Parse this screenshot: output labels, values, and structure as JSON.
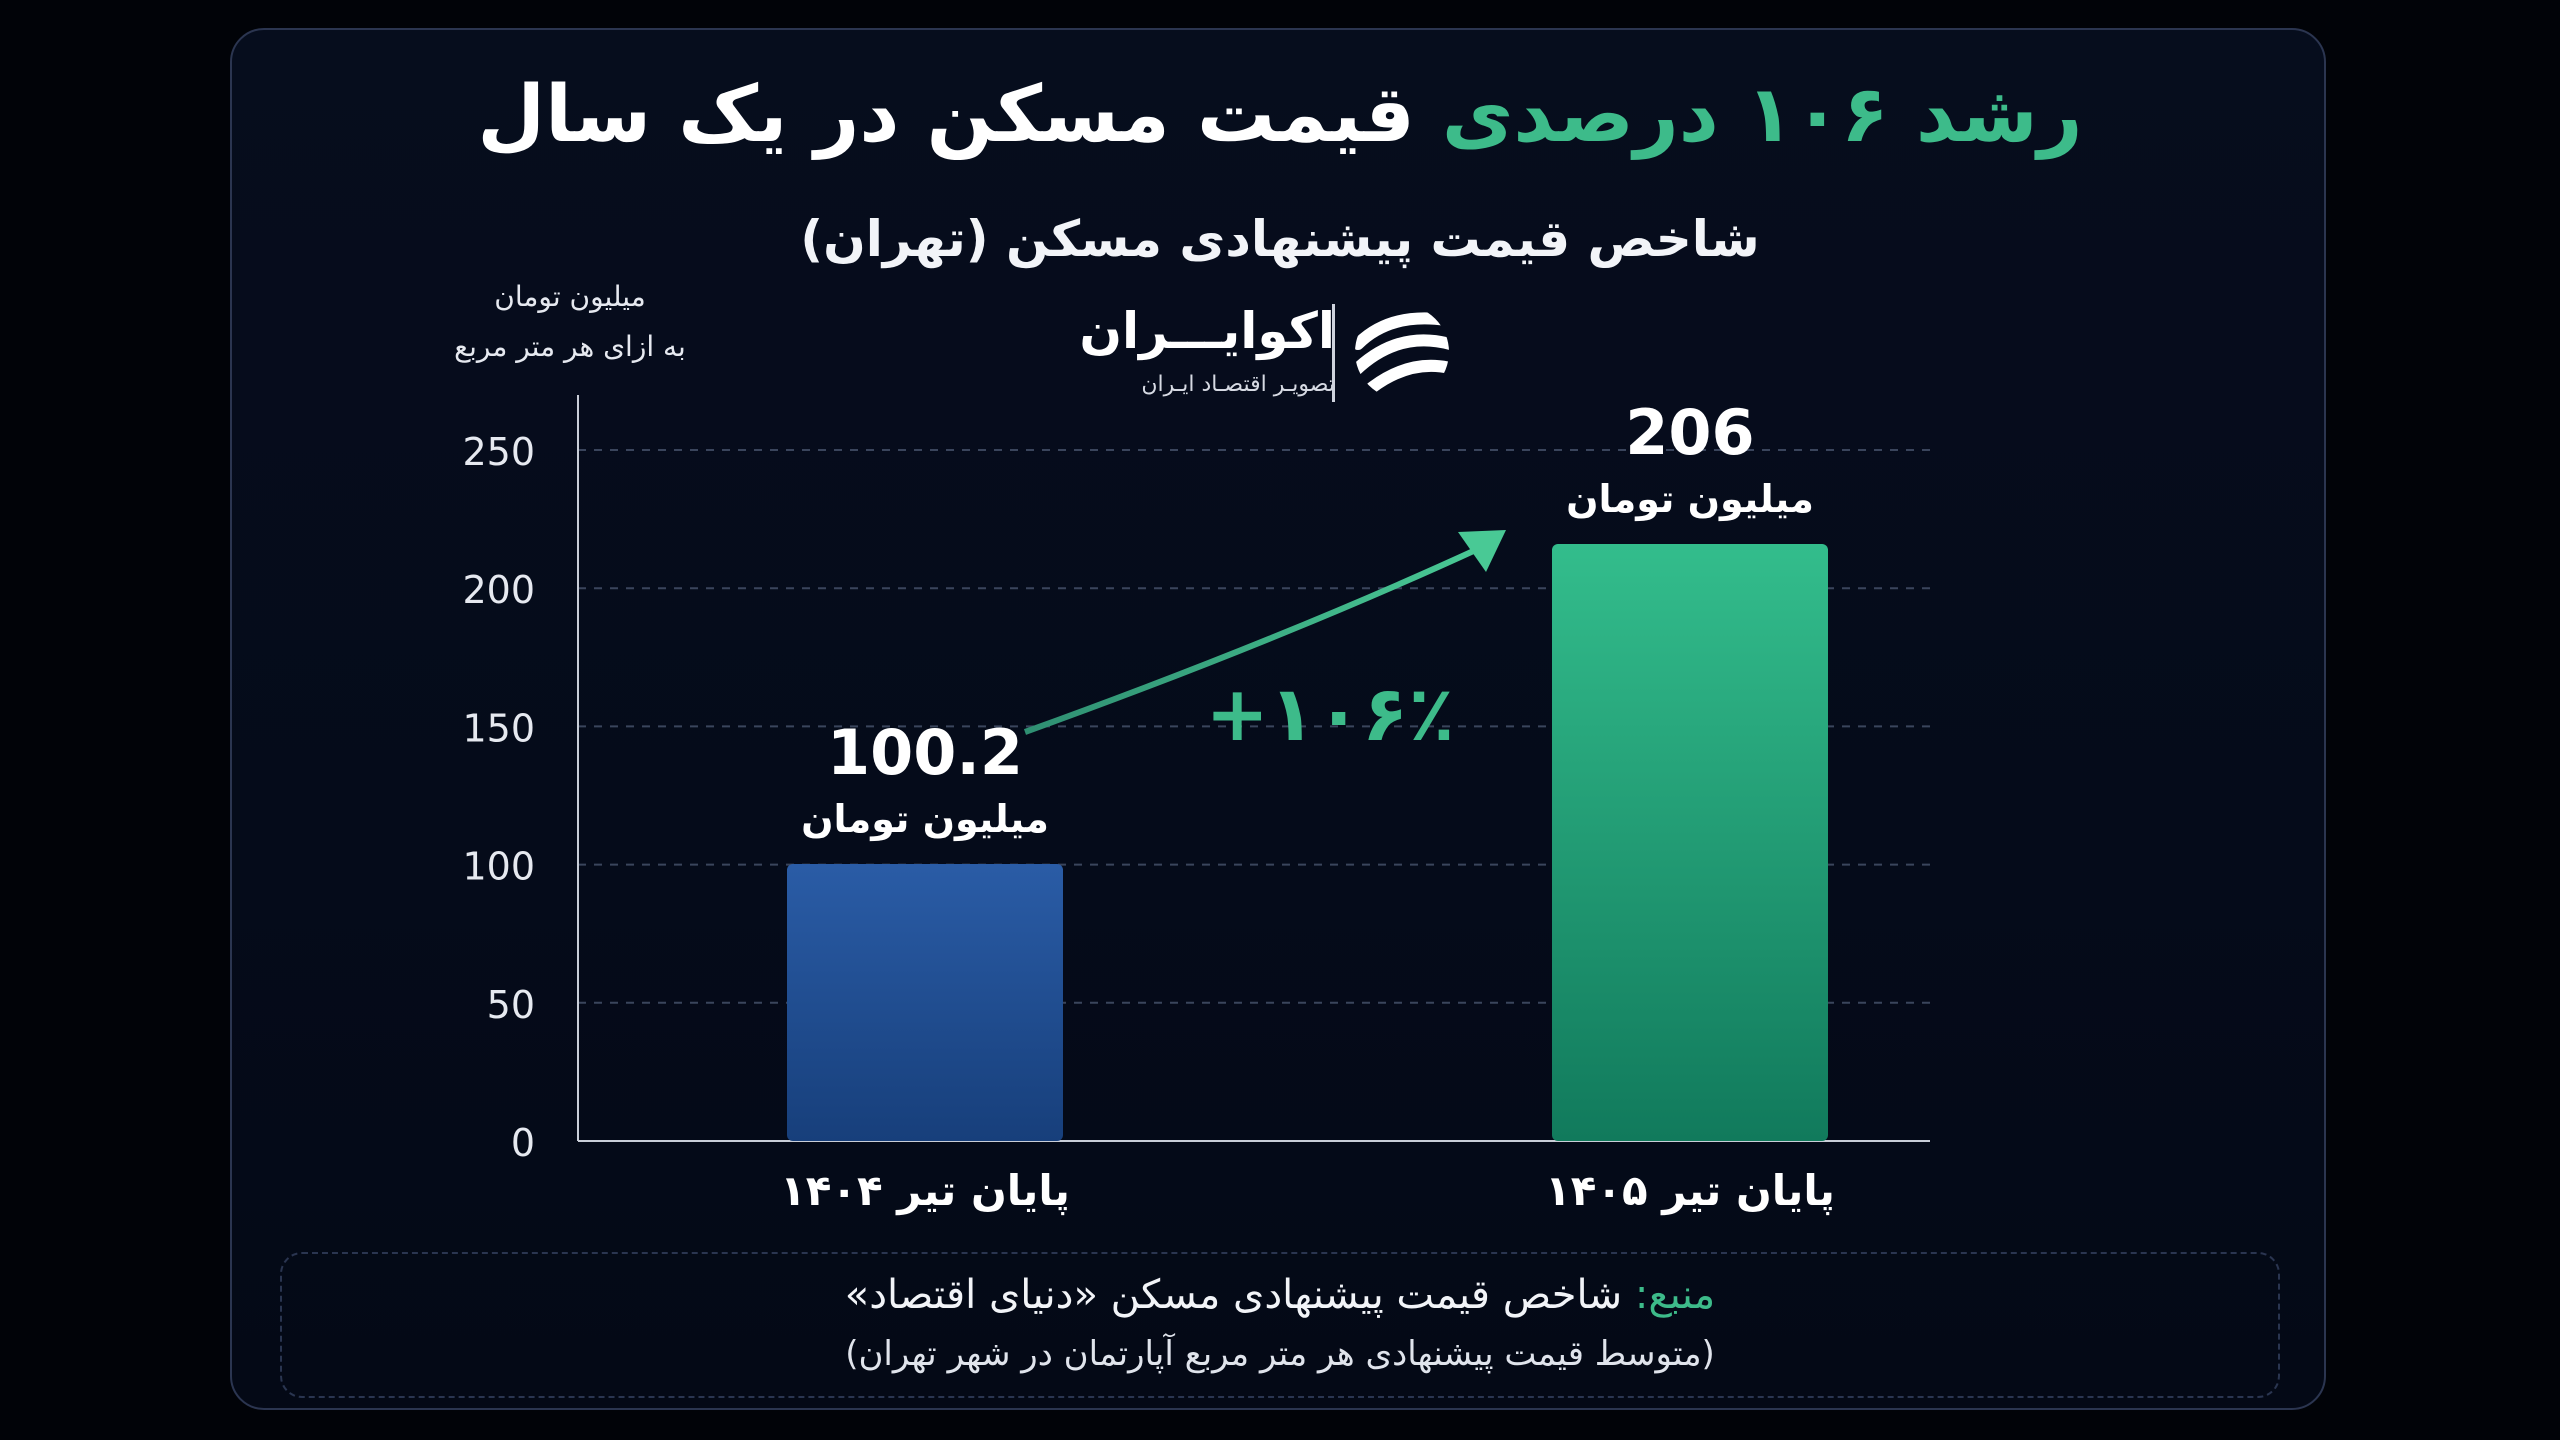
{
  "header": {
    "title_accent": "رشد ۱۰۶ درصدی",
    "title_rest": "قیمت مسکن در یک سال",
    "subtitle": "شاخص قیمت پیشنهادی مسکن (تهران)"
  },
  "unit": {
    "line1": "میلیون تومان",
    "line2": "به ازای هر متر مربع"
  },
  "logo": {
    "name": "اکوایـــران",
    "tagline": "تصویـر اقتصـاد ایـران"
  },
  "colors": {
    "accent": "#3dbb8a",
    "bar_blue": "#1f4e93",
    "bar_green": "#2aa57c",
    "background": "#050b1a"
  },
  "chart_data": {
    "type": "bar",
    "categories": [
      "پایان تیر ۱۴۰۴",
      "پایان تیر ۱۴۰۵"
    ],
    "values": [
      100.2,
      206
    ],
    "value_labels": [
      "100.2",
      "206"
    ],
    "value_unit": "میلیون تومان",
    "ylim": [
      0,
      250
    ],
    "yticks": [
      0,
      50,
      100,
      150,
      200,
      250
    ],
    "grid": true,
    "annotation": "+۱۰۶٪"
  },
  "source": {
    "key": "منبع:",
    "text": "شاخص قیمت پیشنهادی مسکن «دنیای اقتصاد»",
    "note": "(متوسط قیمت پیشنهادی هر متر مربع آپارتمان در شهر تهران)"
  }
}
